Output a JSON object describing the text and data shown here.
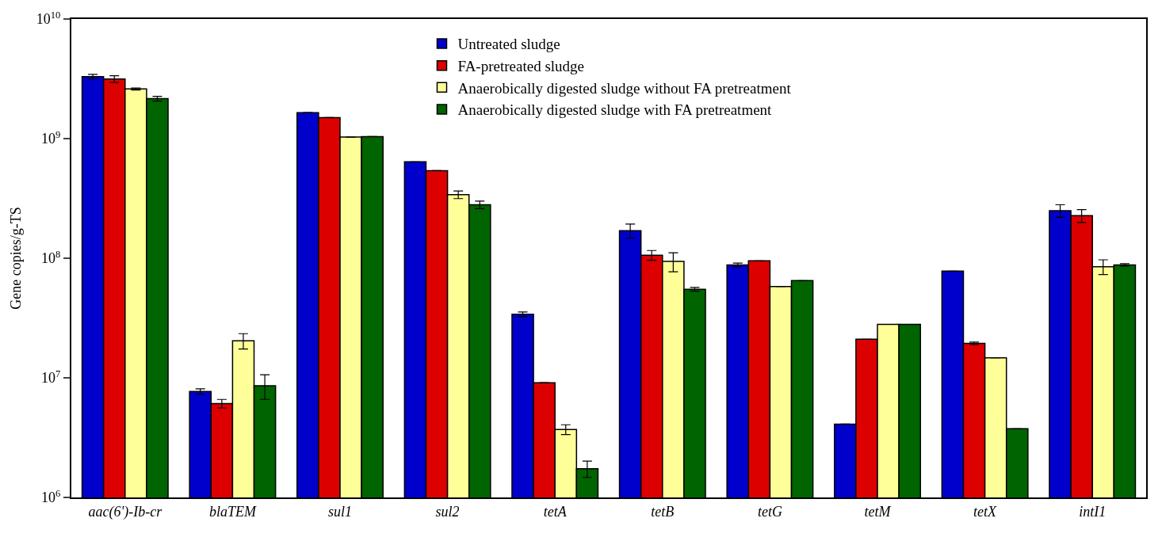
{
  "chart_data": {
    "type": "bar",
    "ylabel": "Gene copies/g-TS",
    "categories": [
      "aac(6')-Ib-cr",
      "blaTEM",
      "sul1",
      "sul2",
      "tetA",
      "tetB",
      "tetG",
      "tetM",
      "tetX",
      "intI1"
    ],
    "series": [
      {
        "name": "Untreated sludge",
        "color": "#0000cc",
        "values": [
          3300000000.0,
          7700000.0,
          1650000000.0,
          640000000.0,
          34000000.0,
          170000000.0,
          88000000.0,
          4100000.0,
          78000000.0,
          250000000.0
        ],
        "errors": [
          150000000.0,
          400000.0,
          null,
          null,
          1500000.0,
          23000000.0,
          3000000.0,
          null,
          null,
          30000000.0
        ]
      },
      {
        "name": "FA-pretreated sludge",
        "color": "#dd0000",
        "values": [
          3150000000.0,
          6100000.0,
          1500000000.0,
          540000000.0,
          9100000.0,
          106000000.0,
          95000000.0,
          21000000.0,
          19400000.0,
          227000000.0
        ],
        "errors": [
          200000000.0,
          500000.0,
          null,
          null,
          null,
          10000000.0,
          null,
          null,
          500000.0,
          28000000.0
        ]
      },
      {
        "name": "Anaerobically digested sludge without FA pretreatment",
        "color": "#ffff99",
        "values": [
          2600000000.0,
          20400000.0,
          1030000000.0,
          340000000.0,
          3700000.0,
          94000000.0,
          58000000.0,
          28000000.0,
          14700000.0,
          85000000.0
        ],
        "errors": [
          50000000.0,
          3000000.0,
          null,
          25000000.0,
          350000.0,
          17000000.0,
          null,
          null,
          null,
          12000000.0
        ]
      },
      {
        "name": "Anaerobically digested sludge with FA pretreatment",
        "color": "#006400",
        "values": [
          2160000000.0,
          8600000.0,
          1040000000.0,
          280000000.0,
          1740000.0,
          55000000.0,
          65000000.0,
          28000000.0,
          3750000.0,
          88000000.0
        ],
        "errors": [
          100000000.0,
          2000000.0,
          null,
          20000000.0,
          270000.0,
          2000000.0,
          null,
          null,
          null,
          2000000.0
        ]
      }
    ],
    "log": true,
    "ylim": [
      1000000.0,
      10000000000.0
    ],
    "yticks": [
      {
        "value": 1000000.0,
        "label": "10$^{6}$"
      },
      {
        "value": 10000000.0,
        "label": "10$^{7}$"
      },
      {
        "value": 100000000.0,
        "label": "10$^{8}$"
      },
      {
        "value": 1000000000.0,
        "label": "10$^{9}$"
      },
      {
        "value": 10000000000.0,
        "label": "10$^{10}$"
      }
    ],
    "legend": "top"
  }
}
